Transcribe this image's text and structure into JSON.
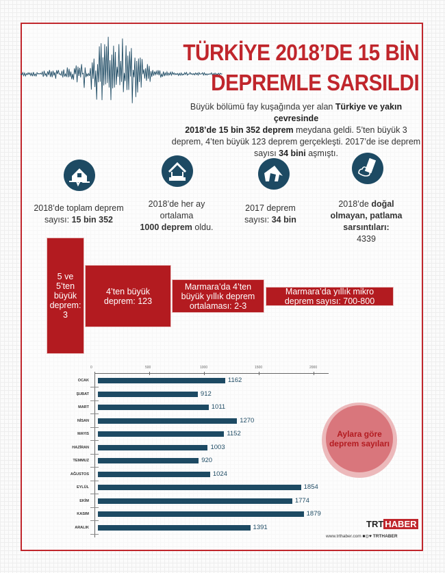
{
  "title": {
    "line1": "TÜRKİYE 2018’DE 15 BİN",
    "line2": "DEPREMLE SARSILDI"
  },
  "intro": {
    "p1": "Büyük bölümü fay kuşağında yer alan ",
    "b1": "Türkiye ve yakın çevresinde",
    "b2": "2018’de 15 bin 352 deprem",
    "p2": " meydana geldi. 5’ten büyük 3 deprem, 4’ten büyük 123 deprem gerçekleşti. 2017’de ise deprem sayısı ",
    "b3": "34 bini",
    "p3": " aşmıştı."
  },
  "stats": [
    {
      "icon": "house-quake-icon",
      "t1": "2018’de toplam deprem sayısı: ",
      "b": "15 bin 352",
      "t2": ""
    },
    {
      "icon": "house-crack-icon",
      "t1": "2018’de her ay ortalama ",
      "b": "1000 deprem",
      "t2": " oldu."
    },
    {
      "icon": "collapsed-house-icon",
      "t1": "2017 deprem sayısı: ",
      "b": "34 bin",
      "t2": ""
    },
    {
      "icon": "explosion-building-icon",
      "t1": "2018’de ",
      "b": "doğal olmayan, patlama sarsıntıları:",
      "t2": "4339"
    }
  ],
  "boxes": [
    "5 ve 5’ten büyük deprem: 3",
    "4’ten büyük deprem: 123",
    "Marmara’da 4’ten büyük yıllık deprem ortalaması: 2-3",
    "Marmara’da yıllık mikro deprem sayısı: 700-800"
  ],
  "chart_data": {
    "type": "bar",
    "orientation": "horizontal",
    "title": "Aylara göre deprem sayıları",
    "categories": [
      "OCAK",
      "ŞUBAT",
      "MART",
      "NİSAN",
      "MAYIS",
      "HAZİRAN",
      "TEMMUZ",
      "AĞUSTOS",
      "EYLÜL",
      "EKİM",
      "KASIM",
      "ARALIK"
    ],
    "values": [
      1162,
      912,
      1011,
      1270,
      1152,
      1003,
      920,
      1024,
      1854,
      1774,
      1879,
      1391
    ],
    "xticks": [
      0,
      500,
      1000,
      1500,
      2000
    ],
    "xlim": [
      0,
      2200
    ],
    "color": "#1d4a63"
  },
  "footer": {
    "logo_trt": "TRT",
    "logo_haber": "HABER",
    "url": "www.trthaber.com",
    "social": "TRTHABER"
  },
  "colors": {
    "accent": "#c0262c",
    "navy": "#1d4a63"
  }
}
